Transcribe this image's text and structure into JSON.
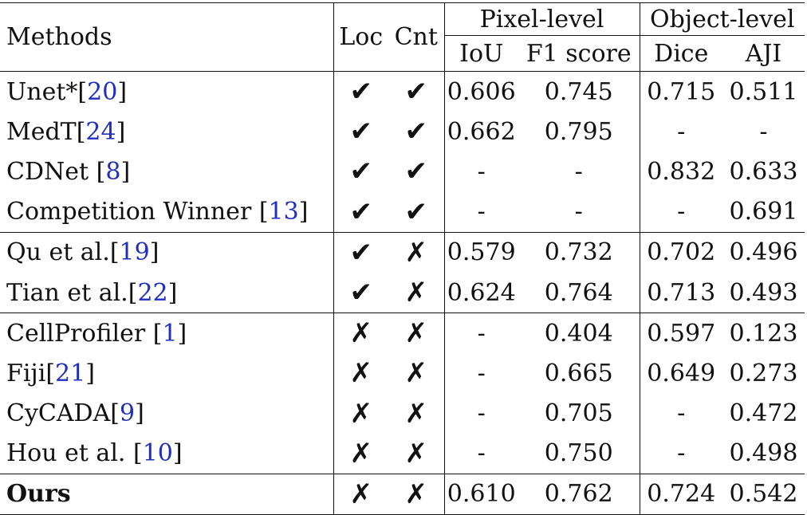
{
  "header": {
    "methods": "Methods",
    "loc": "Loc",
    "cnt": "Cnt",
    "pixel_level": "Pixel-level",
    "object_level": "Object-level",
    "iou": "IoU",
    "f1": "F1 score",
    "dice": "Dice",
    "aji": "AJI"
  },
  "glyphs": {
    "check": "✔",
    "cross": "✗"
  },
  "colors": {
    "ref_link": "#1f2fbf",
    "text": "#111111",
    "rule": "#111111"
  },
  "rows": [
    {
      "name": "Unet*",
      "ref": "20",
      "sep": "",
      "loc": "check",
      "cnt": "check",
      "iou": "0.606",
      "f1": "0.745",
      "dice": "0.715",
      "aji": "0.511"
    },
    {
      "name": "MedT",
      "ref": "24",
      "sep": "",
      "loc": "check",
      "cnt": "check",
      "iou": "0.662",
      "f1": "0.795",
      "dice": "-",
      "aji": "-"
    },
    {
      "name": "CDNet",
      "ref": "8",
      "sep": " ",
      "loc": "check",
      "cnt": "check",
      "iou": "-",
      "f1": "-",
      "dice": "0.832",
      "aji": "0.633"
    },
    {
      "name": "Competition Winner",
      "ref": "13",
      "sep": " ",
      "loc": "check",
      "cnt": "check",
      "iou": "-",
      "f1": "-",
      "dice": "-",
      "aji": "0.691"
    },
    {
      "name": "Qu et al.",
      "ref": "19",
      "sep": "",
      "loc": "check",
      "cnt": "cross",
      "iou": "0.579",
      "f1": "0.732",
      "dice": "0.702",
      "aji": "0.496"
    },
    {
      "name": "Tian et al.",
      "ref": "22",
      "sep": "",
      "loc": "check",
      "cnt": "cross",
      "iou": "0.624",
      "f1": "0.764",
      "dice": "0.713",
      "aji": "0.493"
    },
    {
      "name": "CellProfiler",
      "ref": "1",
      "sep": " ",
      "loc": "cross",
      "cnt": "cross",
      "iou": "-",
      "f1": "0.404",
      "dice": "0.597",
      "aji": "0.123"
    },
    {
      "name": "Fiji",
      "ref": "21",
      "sep": "",
      "loc": "cross",
      "cnt": "cross",
      "iou": "-",
      "f1": "0.665",
      "dice": "0.649",
      "aji": "0.273"
    },
    {
      "name": "CyCADA",
      "ref": "9",
      "sep": "",
      "loc": "cross",
      "cnt": "cross",
      "iou": "-",
      "f1": "0.705",
      "dice": "-",
      "aji": "0.472"
    },
    {
      "name": "Hou et al.",
      "ref": "10",
      "sep": " ",
      "loc": "cross",
      "cnt": "cross",
      "iou": "-",
      "f1": "0.750",
      "dice": "-",
      "aji": "0.498"
    },
    {
      "name": "Ours",
      "ref": "",
      "sep": "",
      "bold": true,
      "loc": "cross",
      "cnt": "cross",
      "iou": "0.610",
      "f1": "0.762",
      "dice": "0.724",
      "aji": "0.542"
    }
  ],
  "group_starts": [
    4,
    6,
    10
  ]
}
